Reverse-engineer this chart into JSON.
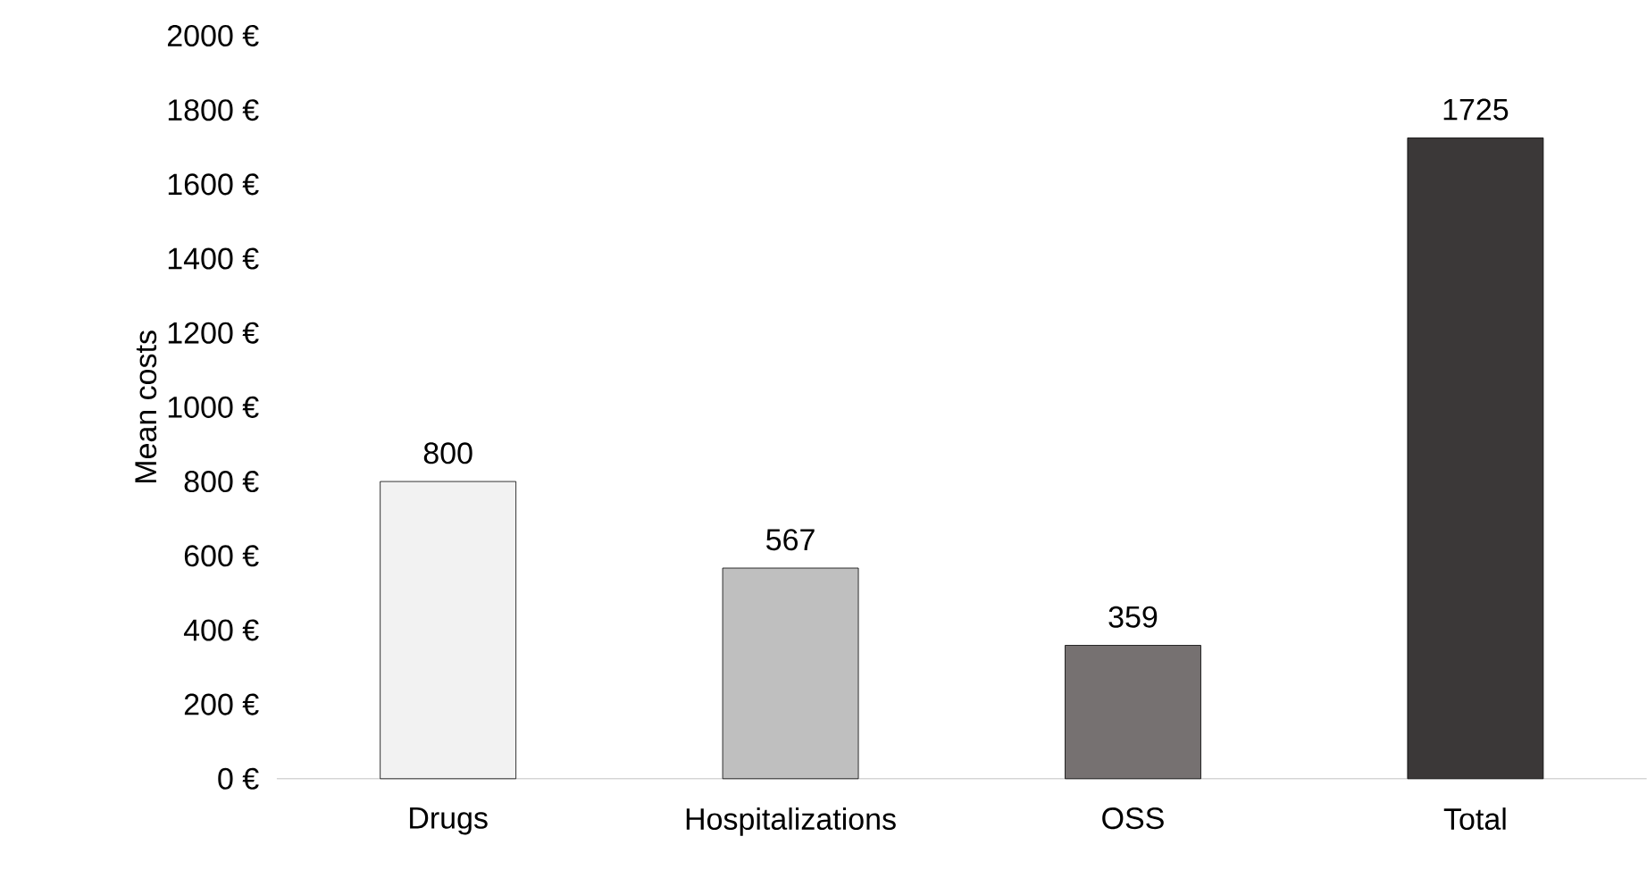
{
  "chart_data": {
    "type": "bar",
    "ylabel": "Mean costs",
    "categories": [
      "Drugs",
      "Hospitalizations",
      "OSS",
      "Total"
    ],
    "values": [
      800,
      567,
      359,
      1725
    ],
    "colors": [
      "#f2f2f2",
      "#bfbfbf",
      "#767171",
      "#3b3838"
    ],
    "ylim": [
      0,
      2000
    ],
    "yticks": [
      {
        "value": 0,
        "label": "0 €"
      },
      {
        "value": 200,
        "label": "200 €"
      },
      {
        "value": 400,
        "label": "400 €"
      },
      {
        "value": 600,
        "label": "600 €"
      },
      {
        "value": 800,
        "label": "800 €"
      },
      {
        "value": 1000,
        "label": "1000 €"
      },
      {
        "value": 1200,
        "label": "1200 €"
      },
      {
        "value": 1400,
        "label": "1400 €"
      },
      {
        "value": 1600,
        "label": "1600 €"
      },
      {
        "value": 1800,
        "label": "1800 €"
      },
      {
        "value": 2000,
        "label": "2000 €"
      }
    ],
    "data_labels": true
  }
}
